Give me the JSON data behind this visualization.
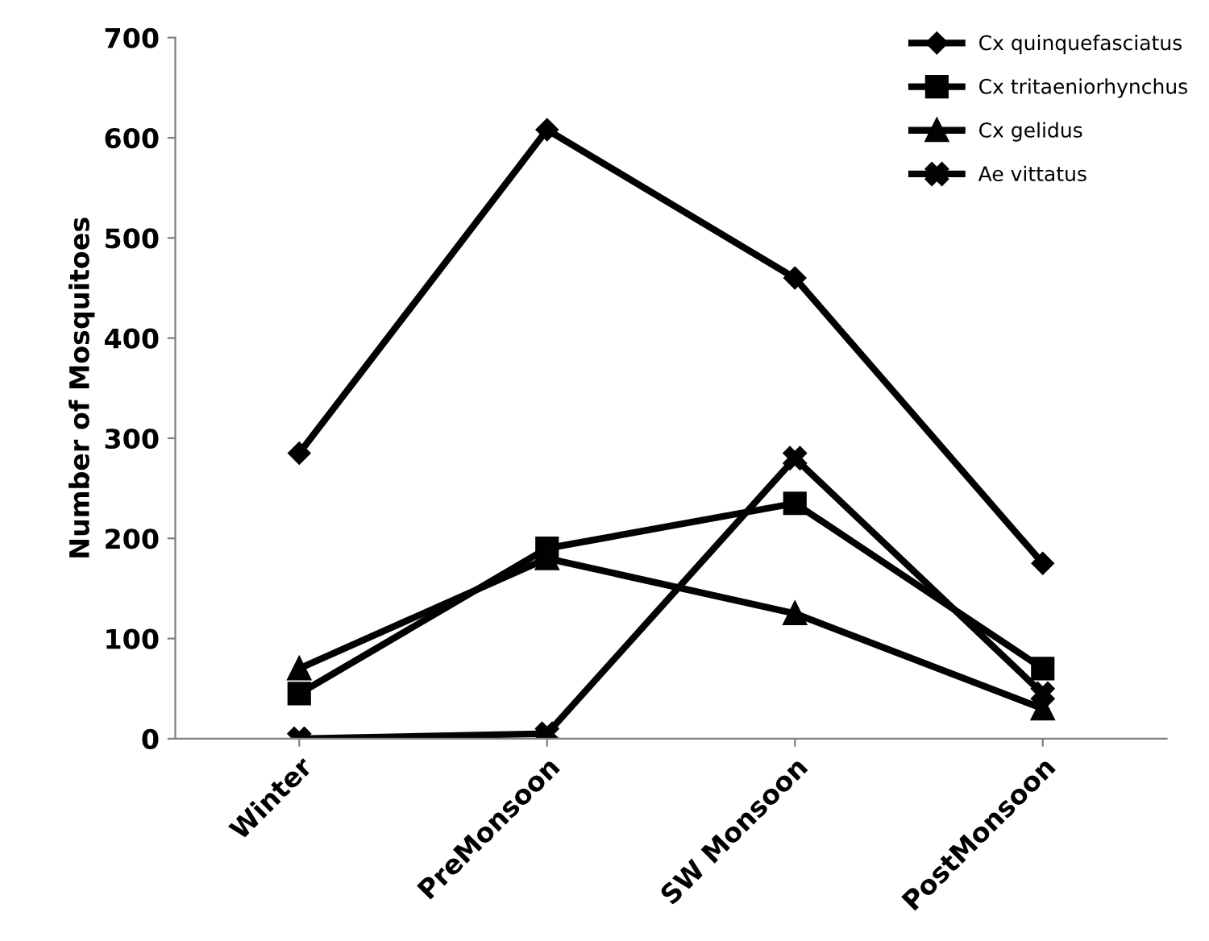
{
  "chart_data": {
    "type": "line",
    "ylabel": "Number of Mosquitoes",
    "categories": [
      "Winter",
      "PreMonsoon",
      "SW Monsoon",
      "PostMonsoon"
    ],
    "series": [
      {
        "name": "Cx quinquefasciatus",
        "color": "#000000",
        "marker": "diamond",
        "values": [
          285,
          608,
          460,
          175
        ]
      },
      {
        "name": "Cx tritaeniorhynchus",
        "color": "#010101",
        "marker": "square",
        "values": [
          45,
          190,
          235,
          70
        ]
      },
      {
        "name": "Cx gelidus",
        "color": "#020202",
        "marker": "triangle",
        "values": [
          70,
          180,
          125,
          30
        ]
      },
      {
        "name": "Ae vittatus",
        "color": "#030303",
        "marker": "cross",
        "values": [
          0,
          5,
          280,
          45
        ]
      }
    ],
    "ylim": [
      0,
      700
    ],
    "yticks": [
      0,
      100,
      200,
      300,
      400,
      500,
      600,
      700
    ],
    "grid": false,
    "legend": "top right",
    "line_style": "solid"
  }
}
